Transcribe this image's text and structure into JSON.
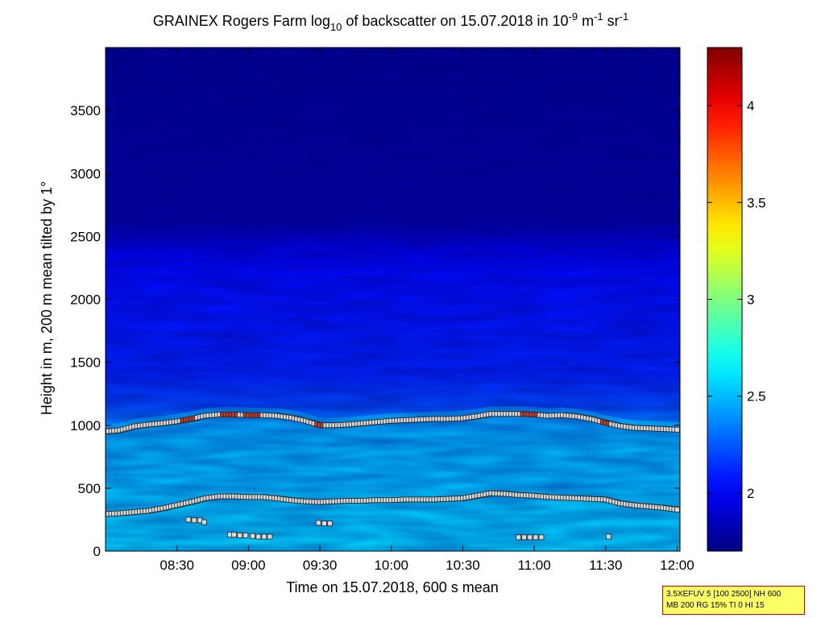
{
  "chart_data": {
    "type": "heatmap",
    "title": {
      "prefix": "GRAINEX Rogers Farm log",
      "log_base": "10",
      "middle": " of backscatter on 15.07.2018 in 10",
      "exp1": "-9",
      "unit1": " m",
      "exp2": "-1",
      "unit2": " sr",
      "exp3": "-1"
    },
    "xlabel": "Time on 15.07.2018, 600 s mean",
    "ylabel": "Height in m, 200 m mean tilted by 1°",
    "x_ticks": [
      {
        "label": "08:30",
        "hour": 8.5
      },
      {
        "label": "09:00",
        "hour": 9.0
      },
      {
        "label": "09:30",
        "hour": 9.5
      },
      {
        "label": "10:00",
        "hour": 10.0
      },
      {
        "label": "10:30",
        "hour": 10.5
      },
      {
        "label": "11:00",
        "hour": 11.0
      },
      {
        "label": "11:30",
        "hour": 11.5
      },
      {
        "label": "12:00",
        "hour": 12.0
      }
    ],
    "xlim": [
      8.0,
      12.02
    ],
    "y_ticks": [
      0,
      500,
      1000,
      1500,
      2000,
      2500,
      3000,
      3500
    ],
    "ylim": [
      0,
      4000
    ],
    "colorbar": {
      "ticks": [
        2,
        2.5,
        3,
        3.5,
        4
      ],
      "range": [
        1.7,
        4.3
      ],
      "colormap": "jet"
    },
    "field_levels": [
      {
        "height": 0,
        "value": 2.62
      },
      {
        "height": 250,
        "value": 2.58
      },
      {
        "height": 500,
        "value": 2.52
      },
      {
        "height": 800,
        "value": 2.47
      },
      {
        "height": 1000,
        "value": 2.38
      },
      {
        "height": 1150,
        "value": 2.22
      },
      {
        "height": 1400,
        "value": 2.12
      },
      {
        "height": 1800,
        "value": 2.08
      },
      {
        "height": 2200,
        "value": 2.05
      },
      {
        "height": 2400,
        "value": 1.95
      },
      {
        "height": 2600,
        "value": 1.78
      },
      {
        "height": 4000,
        "value": 1.74
      }
    ],
    "series": [
      {
        "role": "upper layer height",
        "points": [
          [
            8.0,
            950
          ],
          [
            8.1,
            960
          ],
          [
            8.2,
            990
          ],
          [
            8.3,
            1005
          ],
          [
            8.4,
            1015
          ],
          [
            8.5,
            1030
          ],
          [
            8.6,
            1050
          ],
          [
            8.7,
            1075
          ],
          [
            8.8,
            1085
          ],
          [
            8.9,
            1085
          ],
          [
            9.0,
            1080
          ],
          [
            9.1,
            1080
          ],
          [
            9.2,
            1075
          ],
          [
            9.3,
            1060
          ],
          [
            9.4,
            1035
          ],
          [
            9.5,
            1000
          ],
          [
            9.6,
            1000
          ],
          [
            9.7,
            1005
          ],
          [
            9.8,
            1015
          ],
          [
            9.9,
            1025
          ],
          [
            10.0,
            1035
          ],
          [
            10.1,
            1040
          ],
          [
            10.2,
            1045
          ],
          [
            10.3,
            1050
          ],
          [
            10.4,
            1050
          ],
          [
            10.5,
            1055
          ],
          [
            10.6,
            1070
          ],
          [
            10.7,
            1090
          ],
          [
            10.8,
            1090
          ],
          [
            10.9,
            1090
          ],
          [
            11.0,
            1085
          ],
          [
            11.1,
            1075
          ],
          [
            11.2,
            1080
          ],
          [
            11.3,
            1070
          ],
          [
            11.4,
            1050
          ],
          [
            11.5,
            1020
          ],
          [
            11.6,
            995
          ],
          [
            11.7,
            980
          ],
          [
            11.8,
            975
          ],
          [
            11.9,
            970
          ],
          [
            12.0,
            965
          ],
          [
            12.02,
            965
          ]
        ],
        "highlight_hours": [
          8.55,
          8.6,
          8.85,
          8.9,
          9.0,
          9.05,
          9.5,
          10.95,
          11.0,
          11.5
        ]
      },
      {
        "role": "lower layer height",
        "points": [
          [
            8.0,
            295
          ],
          [
            8.1,
            300
          ],
          [
            8.2,
            310
          ],
          [
            8.3,
            320
          ],
          [
            8.4,
            340
          ],
          [
            8.5,
            365
          ],
          [
            8.6,
            390
          ],
          [
            8.7,
            420
          ],
          [
            8.8,
            435
          ],
          [
            8.9,
            435
          ],
          [
            9.0,
            430
          ],
          [
            9.1,
            430
          ],
          [
            9.2,
            420
          ],
          [
            9.3,
            405
          ],
          [
            9.4,
            395
          ],
          [
            9.5,
            390
          ],
          [
            9.6,
            395
          ],
          [
            9.7,
            400
          ],
          [
            9.8,
            400
          ],
          [
            9.9,
            405
          ],
          [
            10.0,
            405
          ],
          [
            10.1,
            410
          ],
          [
            10.2,
            410
          ],
          [
            10.3,
            410
          ],
          [
            10.4,
            415
          ],
          [
            10.5,
            420
          ],
          [
            10.6,
            440
          ],
          [
            10.7,
            460
          ],
          [
            10.8,
            455
          ],
          [
            10.9,
            445
          ],
          [
            11.0,
            440
          ],
          [
            11.1,
            430
          ],
          [
            11.2,
            425
          ],
          [
            11.3,
            420
          ],
          [
            11.4,
            415
          ],
          [
            11.5,
            410
          ],
          [
            11.6,
            380
          ],
          [
            11.7,
            365
          ],
          [
            11.8,
            355
          ],
          [
            11.9,
            345
          ],
          [
            12.0,
            330
          ],
          [
            12.02,
            325
          ]
        ]
      },
      {
        "role": "low level detections",
        "points": [
          [
            8.58,
            250
          ],
          [
            8.62,
            245
          ],
          [
            8.66,
            245
          ],
          [
            8.69,
            230
          ],
          [
            8.87,
            130
          ],
          [
            8.9,
            130
          ],
          [
            8.94,
            125
          ],
          [
            8.98,
            125
          ],
          [
            9.03,
            120
          ],
          [
            9.07,
            115
          ],
          [
            9.11,
            115
          ],
          [
            9.15,
            115
          ],
          [
            9.49,
            225
          ],
          [
            9.53,
            220
          ],
          [
            9.57,
            220
          ],
          [
            10.89,
            110
          ],
          [
            10.93,
            110
          ],
          [
            10.97,
            110
          ],
          [
            11.01,
            110
          ],
          [
            11.05,
            110
          ],
          [
            11.52,
            115
          ]
        ]
      }
    ]
  },
  "info_box": {
    "line1": "3.5XEFUV 5 [100 2500] NH 600",
    "line2": "MB 200 RG 15% TI 0 HI 15"
  }
}
